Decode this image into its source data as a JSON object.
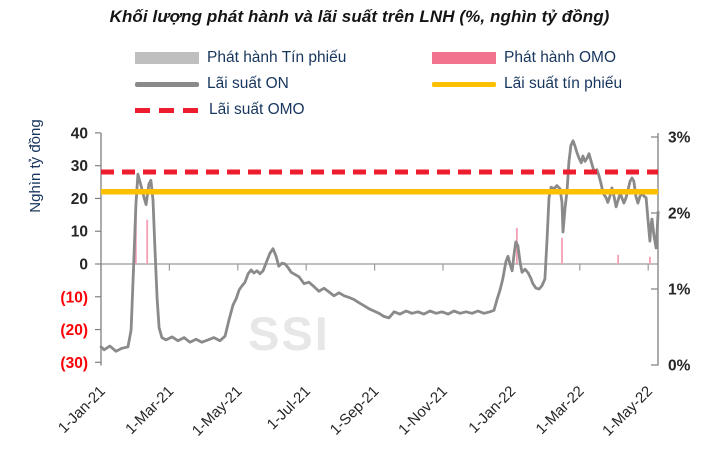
{
  "title": "Khối lượng phát hành và lãi suất trên LNH (%, nghìn tỷ đồng)",
  "watermark": "SSI",
  "legend": {
    "items": [
      {
        "id": "phat_hanh_tin_phieu",
        "label": "Phát hành Tín phiếu",
        "swatch": "bar",
        "color": "#bfbfbf"
      },
      {
        "id": "phat_hanh_omo",
        "label": "Phát hành OMO",
        "swatch": "bar",
        "color": "#f2738d"
      },
      {
        "id": "lai_suat_on",
        "label": "Lãi suất ON",
        "swatch": "line",
        "color": "#8a8a8a"
      },
      {
        "id": "lai_suat_tin_phieu",
        "label": "Lãi suất tín phiếu",
        "swatch": "line",
        "color": "#ffc000"
      },
      {
        "id": "lai_suat_omo",
        "label": "Lãi suất OMO",
        "swatch": "dashed-line",
        "color": "#ed1c2e"
      }
    ]
  },
  "chart_data": {
    "type": "composite",
    "title": "Khối lượng phát hành và lãi suất trên LNH (%, nghìn tỷ đồng)",
    "x_axis": {
      "labels": [
        "1-Jan-21",
        "1-Mar-21",
        "1-May-21",
        "1-Jul-21",
        "1-Sep-21",
        "1-Nov-21",
        "1-Jan-22",
        "1-Mar-22",
        "1-May-22"
      ],
      "months_per_label": 2,
      "months_span": [
        0,
        16.29
      ],
      "label_color": "#262626"
    },
    "left_axis": {
      "title": "Nghìn tỷ đồng",
      "ticks": [
        "40",
        "30",
        "20",
        "10",
        "0",
        "(10)",
        "(20)",
        "(30)"
      ],
      "tick_values": [
        40,
        30,
        20,
        10,
        0,
        -10,
        -20,
        -30
      ],
      "range": [
        -30,
        40
      ],
      "tick_color": "#262626",
      "negative_tick_color": "#fb0007",
      "title_color": "#17365d"
    },
    "right_axis": {
      "ticks": [
        "3%",
        "2%",
        "1%",
        "0%"
      ],
      "tick_values": [
        3,
        2,
        1,
        0
      ],
      "range": [
        0,
        3
      ],
      "tick_color": "#262626"
    },
    "series": [
      {
        "name": "Phát hành Tín phiếu",
        "type": "bar",
        "axis": "left",
        "color": "#bfbfbf",
        "points": []
      },
      {
        "name": "Phát hành OMO",
        "type": "bar",
        "axis": "left",
        "color": "#f59fb4",
        "points": [
          [
            1.02,
            14
          ],
          [
            1.35,
            13.5
          ],
          [
            12.16,
            11
          ],
          [
            13.48,
            8
          ],
          [
            15.12,
            2.8
          ],
          [
            16.05,
            2.2
          ]
        ]
      },
      {
        "name": "Lãi suất ON",
        "type": "line",
        "axis": "right",
        "color": "#8a8a8a",
        "points": [
          [
            0,
            0.24
          ],
          [
            0.09,
            0.2
          ],
          [
            0.26,
            0.25
          ],
          [
            0.44,
            0.18
          ],
          [
            0.61,
            0.22
          ],
          [
            0.79,
            0.24
          ],
          [
            0.88,
            0.46
          ],
          [
            0.96,
            1.36
          ],
          [
            1.02,
            2.11
          ],
          [
            1.08,
            2.51
          ],
          [
            1.17,
            2.36
          ],
          [
            1.26,
            2.2
          ],
          [
            1.32,
            2.11
          ],
          [
            1.4,
            2.38
          ],
          [
            1.46,
            2.43
          ],
          [
            1.52,
            2.17
          ],
          [
            1.58,
            1.51
          ],
          [
            1.64,
            0.88
          ],
          [
            1.7,
            0.49
          ],
          [
            1.78,
            0.36
          ],
          [
            1.9,
            0.33
          ],
          [
            2.08,
            0.37
          ],
          [
            2.25,
            0.32
          ],
          [
            2.43,
            0.36
          ],
          [
            2.6,
            0.3
          ],
          [
            2.78,
            0.34
          ],
          [
            2.95,
            0.3
          ],
          [
            3.13,
            0.33
          ],
          [
            3.3,
            0.36
          ],
          [
            3.48,
            0.32
          ],
          [
            3.63,
            0.38
          ],
          [
            3.74,
            0.59
          ],
          [
            3.86,
            0.79
          ],
          [
            3.95,
            0.87
          ],
          [
            4.04,
            0.99
          ],
          [
            4.12,
            1.04
          ],
          [
            4.21,
            1.09
          ],
          [
            4.3,
            1.2
          ],
          [
            4.39,
            1.25
          ],
          [
            4.47,
            1.21
          ],
          [
            4.56,
            1.24
          ],
          [
            4.65,
            1.2
          ],
          [
            4.74,
            1.24
          ],
          [
            4.85,
            1.37
          ],
          [
            4.94,
            1.47
          ],
          [
            5.03,
            1.53
          ],
          [
            5.12,
            1.43
          ],
          [
            5.2,
            1.3
          ],
          [
            5.29,
            1.34
          ],
          [
            5.38,
            1.33
          ],
          [
            5.47,
            1.28
          ],
          [
            5.56,
            1.22
          ],
          [
            5.64,
            1.2
          ],
          [
            5.79,
            1.16
          ],
          [
            5.94,
            1.07
          ],
          [
            6.08,
            1.09
          ],
          [
            6.23,
            1.03
          ],
          [
            6.37,
            0.97
          ],
          [
            6.52,
            1.01
          ],
          [
            6.67,
            0.96
          ],
          [
            6.81,
            0.91
          ],
          [
            6.96,
            0.95
          ],
          [
            7.11,
            0.91
          ],
          [
            7.25,
            0.89
          ],
          [
            7.4,
            0.86
          ],
          [
            7.54,
            0.82
          ],
          [
            7.69,
            0.78
          ],
          [
            7.84,
            0.74
          ],
          [
            7.98,
            0.71
          ],
          [
            8.13,
            0.68
          ],
          [
            8.27,
            0.64
          ],
          [
            8.42,
            0.62
          ],
          [
            8.57,
            0.7
          ],
          [
            8.74,
            0.67
          ],
          [
            8.92,
            0.71
          ],
          [
            9.09,
            0.68
          ],
          [
            9.27,
            0.7
          ],
          [
            9.44,
            0.67
          ],
          [
            9.62,
            0.71
          ],
          [
            9.8,
            0.68
          ],
          [
            9.97,
            0.7
          ],
          [
            10.15,
            0.67
          ],
          [
            10.32,
            0.71
          ],
          [
            10.5,
            0.68
          ],
          [
            10.67,
            0.7
          ],
          [
            10.85,
            0.68
          ],
          [
            11.02,
            0.71
          ],
          [
            11.2,
            0.68
          ],
          [
            11.37,
            0.7
          ],
          [
            11.49,
            0.72
          ],
          [
            11.58,
            0.86
          ],
          [
            11.67,
            0.99
          ],
          [
            11.75,
            1.14
          ],
          [
            11.84,
            1.36
          ],
          [
            11.9,
            1.43
          ],
          [
            11.96,
            1.33
          ],
          [
            12.02,
            1.24
          ],
          [
            12.08,
            1.46
          ],
          [
            12.13,
            1.62
          ],
          [
            12.19,
            1.57
          ],
          [
            12.25,
            1.36
          ],
          [
            12.31,
            1.22
          ],
          [
            12.4,
            1.26
          ],
          [
            12.49,
            1.21
          ],
          [
            12.57,
            1.14
          ],
          [
            12.63,
            1.07
          ],
          [
            12.72,
            1.01
          ],
          [
            12.81,
            1
          ],
          [
            12.89,
            1.04
          ],
          [
            12.98,
            1.13
          ],
          [
            13.04,
            1.64
          ],
          [
            13.1,
            2.2
          ],
          [
            13.16,
            2.34
          ],
          [
            13.25,
            2.32
          ],
          [
            13.33,
            2.36
          ],
          [
            13.42,
            2.32
          ],
          [
            13.48,
            2.14
          ],
          [
            13.51,
            1.75
          ],
          [
            13.57,
            2.07
          ],
          [
            13.63,
            2.3
          ],
          [
            13.68,
            2.67
          ],
          [
            13.74,
            2.89
          ],
          [
            13.8,
            2.95
          ],
          [
            13.86,
            2.88
          ],
          [
            13.92,
            2.79
          ],
          [
            13.98,
            2.72
          ],
          [
            14.04,
            2.66
          ],
          [
            14.09,
            2.75
          ],
          [
            14.15,
            2.68
          ],
          [
            14.21,
            2.72
          ],
          [
            14.27,
            2.78
          ],
          [
            14.33,
            2.68
          ],
          [
            14.39,
            2.59
          ],
          [
            14.44,
            2.54
          ],
          [
            14.5,
            2.57
          ],
          [
            14.56,
            2.49
          ],
          [
            14.62,
            2.39
          ],
          [
            14.68,
            2.26
          ],
          [
            14.77,
            2.2
          ],
          [
            14.82,
            2.14
          ],
          [
            14.88,
            2.22
          ],
          [
            14.94,
            2.33
          ],
          [
            15,
            2.22
          ],
          [
            15.06,
            2.08
          ],
          [
            15.12,
            2.17
          ],
          [
            15.18,
            2.26
          ],
          [
            15.23,
            2.2
          ],
          [
            15.29,
            2.13
          ],
          [
            15.35,
            2.2
          ],
          [
            15.41,
            2.3
          ],
          [
            15.47,
            2.42
          ],
          [
            15.53,
            2.46
          ],
          [
            15.58,
            2.42
          ],
          [
            15.64,
            2.22
          ],
          [
            15.7,
            2.13
          ],
          [
            15.76,
            2.22
          ],
          [
            15.82,
            2.26
          ],
          [
            15.88,
            2.22
          ],
          [
            15.94,
            2.2
          ],
          [
            16,
            1.88
          ],
          [
            16.05,
            1.63
          ],
          [
            16.08,
            1.83
          ],
          [
            16.11,
            1.92
          ],
          [
            16.17,
            1.7
          ],
          [
            16.23,
            1.54
          ],
          [
            16.26,
            1.75
          ],
          [
            16.29,
            2.01
          ]
        ]
      },
      {
        "name": "Lãi suất tín phiếu",
        "type": "const-line",
        "axis": "right",
        "value": 2.28,
        "color": "#ffc000"
      },
      {
        "name": "Lãi suất OMO",
        "type": "const-line-dashed",
        "axis": "right",
        "value": 2.54,
        "color": "#ed1c2e"
      }
    ],
    "grid": {
      "zero_line": true,
      "zero_line_color": "#9b9b9b",
      "axis_color": "#808080"
    }
  }
}
